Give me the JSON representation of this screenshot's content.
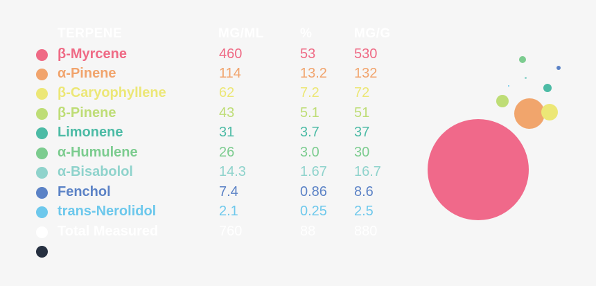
{
  "header": {
    "name": "TERPENE",
    "mg_ml": "MG/ML",
    "pct": "%",
    "mg_g": "MG/G"
  },
  "rows": [
    {
      "name": "β-Myrcene",
      "mg_ml": "460",
      "pct": "53",
      "mg_g": "530",
      "color": "#ef6a85"
    },
    {
      "name": "α-Pinene",
      "mg_ml": "114",
      "pct": "13.2",
      "mg_g": "132",
      "color": "#f1a46d"
    },
    {
      "name": "β-Caryophyllene",
      "mg_ml": "62",
      "pct": "7.2",
      "mg_g": "72",
      "color": "#ece776"
    },
    {
      "name": "β-Pinene",
      "mg_ml": "43",
      "pct": "5.1",
      "mg_g": "51",
      "color": "#bedd76"
    },
    {
      "name": "Limonene",
      "mg_ml": "31",
      "pct": "3.7",
      "mg_g": "37",
      "color": "#4cbba5"
    },
    {
      "name": "α-Humulene",
      "mg_ml": "26",
      "pct": "3.0",
      "mg_g": "30",
      "color": "#7ccc8f"
    },
    {
      "name": "α-Bisabolol",
      "mg_ml": "14.3",
      "pct": "1.67",
      "mg_g": "16.7",
      "color": "#8fd3cc"
    },
    {
      "name": "Fenchol",
      "mg_ml": "7.4",
      "pct": "0.86",
      "mg_g": "8.6",
      "color": "#5b82c6"
    },
    {
      "name": "trans-Nerolidol",
      "mg_ml": "2.1",
      "pct": "0.25",
      "mg_g": "2.5",
      "color": "#6dc8ec"
    },
    {
      "name": "Total Measured",
      "mg_ml": "760",
      "pct": "88",
      "mg_g": "880",
      "color": "#ffffff"
    }
  ],
  "extra_dot_color": "#263040",
  "bubble_chart": {
    "bubbles": [
      {
        "name": "β-Myrcene",
        "color": "#f0698a"
      },
      {
        "name": "α-Pinene",
        "color": "#f1a56c"
      },
      {
        "name": "β-Caryophyllene",
        "color": "#ece776"
      },
      {
        "name": "β-Pinene",
        "color": "#bedd76"
      },
      {
        "name": "Limonene",
        "color": "#4cbba5"
      },
      {
        "name": "α-Humulene",
        "color": "#7ccc8f"
      },
      {
        "name": "α-Bisabolol",
        "color": "#8fd3cc"
      },
      {
        "name": "Fenchol",
        "color": "#5b82c6"
      },
      {
        "name": "trans-Nerolidol",
        "color": "#6dc8ec"
      }
    ]
  }
}
